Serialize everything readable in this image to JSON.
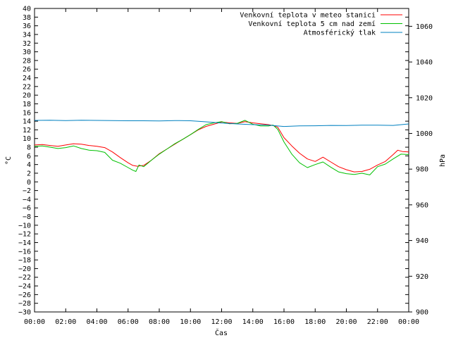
{
  "chart_data": {
    "type": "line",
    "xlabel": "Čas",
    "ylabel_left": "°C",
    "ylabel_right": "hPa",
    "x_ticks": [
      "00:00",
      "02:00",
      "04:00",
      "06:00",
      "08:00",
      "10:00",
      "12:00",
      "14:00",
      "16:00",
      "18:00",
      "20:00",
      "22:00",
      "00:00"
    ],
    "y_left_range": [
      -30,
      40
    ],
    "y_left_step": 2,
    "y_right_range": [
      900,
      1070
    ],
    "y_right_ticks": [
      900,
      920,
      940,
      960,
      980,
      1000,
      1020,
      1040,
      1060
    ],
    "x_range_hours": [
      0,
      24
    ],
    "grid": false,
    "legend_position": "top-right",
    "series": [
      {
        "name": "Venkovní teplota v meteo stanici",
        "color": "#ff0000",
        "axis": "left",
        "points": [
          [
            0,
            8.5
          ],
          [
            0.5,
            8.6
          ],
          [
            1,
            8.4
          ],
          [
            1.5,
            8.2
          ],
          [
            2,
            8.5
          ],
          [
            2.5,
            8.8
          ],
          [
            3,
            8.7
          ],
          [
            3.5,
            8.4
          ],
          [
            4,
            8.2
          ],
          [
            4.5,
            7.9
          ],
          [
            5,
            6.9
          ],
          [
            5.5,
            5.6
          ],
          [
            6,
            4.4
          ],
          [
            6.3,
            3.8
          ],
          [
            6.6,
            3.6
          ],
          [
            7,
            3.8
          ],
          [
            7.5,
            5.0
          ],
          [
            8,
            6.5
          ],
          [
            8.5,
            7.6
          ],
          [
            9,
            8.7
          ],
          [
            9.5,
            9.8
          ],
          [
            10,
            10.9
          ],
          [
            10.5,
            12.0
          ],
          [
            11,
            12.8
          ],
          [
            11.5,
            13.3
          ],
          [
            12,
            13.8
          ],
          [
            12.5,
            13.6
          ],
          [
            13,
            13.5
          ],
          [
            13.5,
            13.9
          ],
          [
            14,
            13.6
          ],
          [
            14.5,
            13.4
          ],
          [
            15,
            13.2
          ],
          [
            15.3,
            13.0
          ],
          [
            15.6,
            12.6
          ],
          [
            16,
            10.2
          ],
          [
            16.5,
            8.3
          ],
          [
            17,
            6.6
          ],
          [
            17.5,
            5.3
          ],
          [
            18,
            4.7
          ],
          [
            18.5,
            5.7
          ],
          [
            19,
            4.6
          ],
          [
            19.5,
            3.5
          ],
          [
            20,
            2.8
          ],
          [
            20.5,
            2.3
          ],
          [
            21,
            2.4
          ],
          [
            21.5,
            2.9
          ],
          [
            22,
            3.9
          ],
          [
            22.5,
            4.7
          ],
          [
            23,
            6.3
          ],
          [
            23.3,
            7.3
          ],
          [
            23.6,
            7.0
          ],
          [
            24,
            6.9
          ]
        ]
      },
      {
        "name": "Venkovní teplota 5 cm nad zemí",
        "color": "#00c000",
        "axis": "left",
        "points": [
          [
            0,
            8.2
          ],
          [
            0.5,
            8.3
          ],
          [
            1,
            8.0
          ],
          [
            1.5,
            7.7
          ],
          [
            2,
            7.9
          ],
          [
            2.5,
            8.3
          ],
          [
            3,
            7.7
          ],
          [
            3.5,
            7.3
          ],
          [
            4,
            7.2
          ],
          [
            4.5,
            6.8
          ],
          [
            5,
            5.0
          ],
          [
            5.5,
            4.3
          ],
          [
            6,
            3.3
          ],
          [
            6.3,
            2.7
          ],
          [
            6.5,
            2.4
          ],
          [
            6.7,
            3.9
          ],
          [
            7,
            3.5
          ],
          [
            7.5,
            5.0
          ],
          [
            8,
            6.4
          ],
          [
            8.5,
            7.6
          ],
          [
            9,
            8.8
          ],
          [
            9.5,
            9.8
          ],
          [
            10,
            10.9
          ],
          [
            10.5,
            12.1
          ],
          [
            11,
            13.2
          ],
          [
            11.5,
            13.6
          ],
          [
            12,
            13.9
          ],
          [
            12.5,
            13.4
          ],
          [
            13,
            13.5
          ],
          [
            13.5,
            14.2
          ],
          [
            14,
            13.3
          ],
          [
            14.5,
            12.9
          ],
          [
            15,
            12.9
          ],
          [
            15.3,
            13.1
          ],
          [
            15.6,
            12.1
          ],
          [
            16,
            9.2
          ],
          [
            16.5,
            6.4
          ],
          [
            17,
            4.4
          ],
          [
            17.5,
            3.3
          ],
          [
            18,
            4.0
          ],
          [
            18.5,
            4.6
          ],
          [
            19,
            3.4
          ],
          [
            19.5,
            2.3
          ],
          [
            20,
            1.9
          ],
          [
            20.5,
            1.7
          ],
          [
            21,
            2.0
          ],
          [
            21.5,
            1.6
          ],
          [
            22,
            3.5
          ],
          [
            22.5,
            4.1
          ],
          [
            23,
            5.3
          ],
          [
            23.5,
            6.4
          ],
          [
            24,
            6.3
          ]
        ]
      },
      {
        "name": "Atmosférický tlak",
        "color": "#0080c0",
        "axis": "right",
        "points": [
          [
            0,
            1007.3
          ],
          [
            1,
            1007.4
          ],
          [
            2,
            1007.2
          ],
          [
            3,
            1007.4
          ],
          [
            4,
            1007.3
          ],
          [
            5,
            1007.2
          ],
          [
            6,
            1007.1
          ],
          [
            7,
            1007.1
          ],
          [
            8,
            1007.0
          ],
          [
            9,
            1007.2
          ],
          [
            10,
            1007.1
          ],
          [
            11,
            1006.5
          ],
          [
            12,
            1005.8
          ],
          [
            13,
            1005.3
          ],
          [
            14,
            1004.9
          ],
          [
            15,
            1004.6
          ],
          [
            16,
            1003.9
          ],
          [
            17,
            1004.2
          ],
          [
            18,
            1004.3
          ],
          [
            19,
            1004.5
          ],
          [
            20,
            1004.4
          ],
          [
            21,
            1004.6
          ],
          [
            22,
            1004.6
          ],
          [
            23,
            1004.5
          ],
          [
            24,
            1005.3
          ]
        ]
      }
    ]
  }
}
